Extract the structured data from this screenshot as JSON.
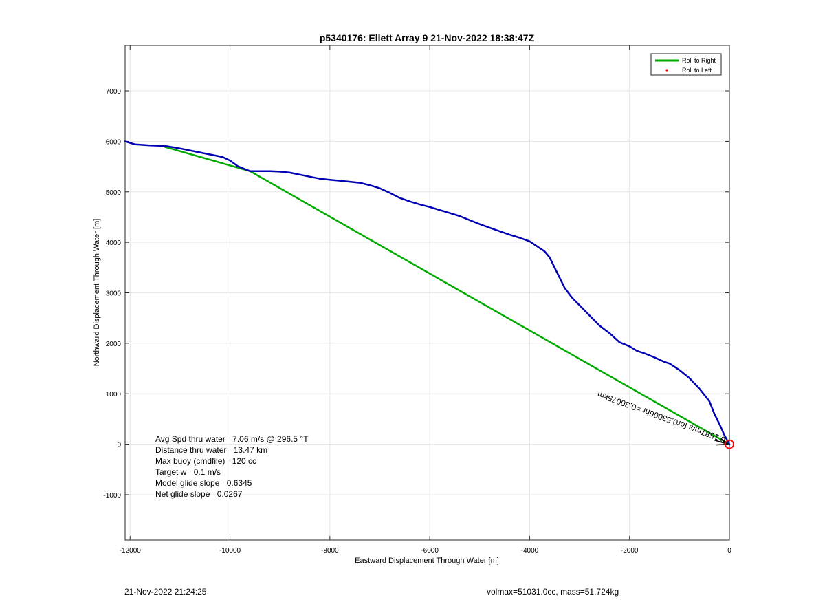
{
  "chart_data": {
    "type": "line",
    "title": "p5340176: Ellett Array 9 21-Nov-2022 18:38:47Z",
    "xlabel": "Eastward Displacement Through Water [m]",
    "ylabel": "Northward Displacement Through Water [m]",
    "xlim": [
      -12100,
      0
    ],
    "ylim": [
      -1900,
      7900
    ],
    "xticks": [
      -12000,
      -10000,
      -8000,
      -6000,
      -4000,
      -2000,
      0
    ],
    "yticks": [
      -1000,
      0,
      1000,
      2000,
      3000,
      4000,
      5000,
      6000,
      7000
    ],
    "grid": true,
    "legend_position": "top-right",
    "legend": [
      {
        "label": "Roll to Right",
        "color": "#00aa00",
        "style": "line"
      },
      {
        "label": "Roll to Left",
        "color": "#ff0000",
        "style": "dot"
      }
    ],
    "series": [
      {
        "color": "#0000b4",
        "x": [
          -12100,
          -11900,
          -11600,
          -11300,
          -11000,
          -10700,
          -10400,
          -10150,
          -10000,
          -9850,
          -9700,
          -9600,
          -9400,
          -9200,
          -9000,
          -8800,
          -8600,
          -8400,
          -8200,
          -8000,
          -7800,
          -7600,
          -7400,
          -7200,
          -7000,
          -6800,
          -6600,
          -6400,
          -6200,
          -6000,
          -5800,
          -5600,
          -5400,
          -5200,
          -5000,
          -4800,
          -4600,
          -4400,
          -4200,
          -4000,
          -3850,
          -3700,
          -3600,
          -3500,
          -3400,
          -3300,
          -3150,
          -3000,
          -2800,
          -2600,
          -2400,
          -2200,
          -2000,
          -1850,
          -1700,
          -1500,
          -1300,
          -1200,
          -1000,
          -800,
          -600,
          -400,
          -300,
          -200,
          -100,
          0
        ],
        "y": [
          6000,
          5940,
          5920,
          5910,
          5860,
          5800,
          5740,
          5690,
          5620,
          5510,
          5450,
          5410,
          5410,
          5410,
          5400,
          5380,
          5340,
          5300,
          5260,
          5240,
          5220,
          5200,
          5180,
          5130,
          5070,
          4980,
          4880,
          4810,
          4750,
          4700,
          4640,
          4580,
          4520,
          4440,
          4360,
          4290,
          4220,
          4150,
          4090,
          4020,
          3920,
          3820,
          3700,
          3500,
          3300,
          3100,
          2900,
          2750,
          2550,
          2350,
          2200,
          2020,
          1940,
          1850,
          1800,
          1720,
          1630,
          1600,
          1470,
          1310,
          1100,
          850,
          600,
          400,
          180,
          0
        ]
      },
      {
        "name": "Roll to Right",
        "color": "#00aa00",
        "x": [
          -11300,
          -9600,
          0
        ],
        "y": [
          5890,
          5410,
          0
        ]
      }
    ],
    "annotations": [
      "Avg Spd thru water=  7.06 m/s @ 296.5 °T",
      "Distance thru water= 13.47 km",
      "Max buoy (cmdfile)= 120 cc",
      "Target w= 0.1 m/s",
      "Model glide slope= 0.6345",
      "Net glide slope= 0.0267"
    ],
    "rotated_label": "0.1587m/s for0.53006hr =0.30075km"
  },
  "footer": {
    "timestamp": "21-Nov-2022 21:24:25",
    "mass_info": "volmax=51031.0cc, mass=51.724kg"
  }
}
